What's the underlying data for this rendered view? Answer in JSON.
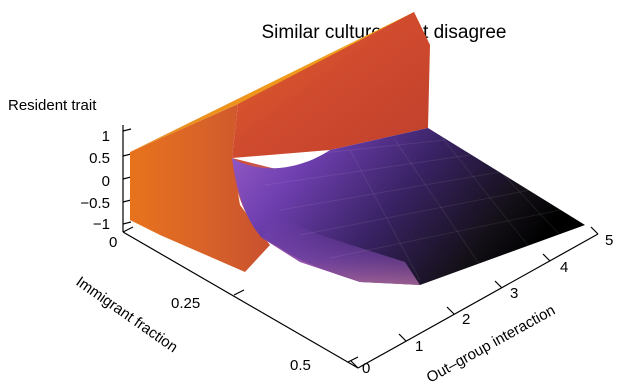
{
  "chart_data": {
    "type": "surface3d",
    "title": "Similar cultures that disagree",
    "zlabel": "Resident trait",
    "xlabel": "Out–group interaction",
    "ylabel": "Immigrant fraction",
    "z_ticks": [
      "1",
      "0.5",
      "0",
      "−0.5",
      "−1"
    ],
    "z_range": [
      -1,
      1
    ],
    "x_ticks": [
      "0",
      "1",
      "2",
      "3",
      "4",
      "5"
    ],
    "x_range": [
      0,
      5
    ],
    "y_ticks": [
      "0",
      "0.25",
      "0.5"
    ],
    "y_range": [
      0,
      0.5
    ],
    "colormap": [
      "#000000",
      "#3b1a63",
      "#7a45c0",
      "#a65ba6",
      "#c7442e",
      "#e8731c",
      "#f2a21a"
    ],
    "surface_description_points": [
      {
        "x": 0,
        "y": 0,
        "z": 0.8
      },
      {
        "x": 0,
        "y": 0.5,
        "z": -1
      },
      {
        "x": 1.5,
        "y": 0,
        "z": 1
      },
      {
        "x": 1.5,
        "y": 0.15,
        "z": -0.6
      },
      {
        "x": 5,
        "y": 0,
        "z": -1
      },
      {
        "x": 5,
        "y": 0.5,
        "z": -1
      }
    ]
  }
}
